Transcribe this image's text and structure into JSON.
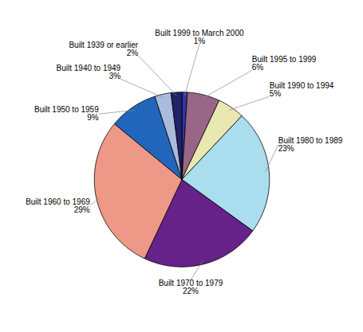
{
  "chart_data": {
    "type": "pie",
    "categories": [
      "Built 1999 to March 2000",
      "Built 1995 to 1999",
      "Built 1990 to 1994",
      "Built 1980 to 1989",
      "Built 1970 to 1979",
      "Built 1960 to 1969",
      "Built 1950 to 1959",
      "Built 1940 to 1949",
      "Built 1939 or earlier"
    ],
    "values": [
      1,
      6,
      5,
      23,
      22,
      29,
      9,
      3,
      2
    ],
    "value_labels": [
      "1%",
      "6%",
      "5%",
      "23%",
      "22%",
      "29%",
      "9%",
      "3%",
      "2%"
    ],
    "colors": [
      "#3333aa",
      "#996688",
      "#e8e8b0",
      "#aaddee",
      "#662288",
      "#ee9988",
      "#2266bb",
      "#aabbdd",
      "#222266"
    ],
    "data_labels": true
  }
}
